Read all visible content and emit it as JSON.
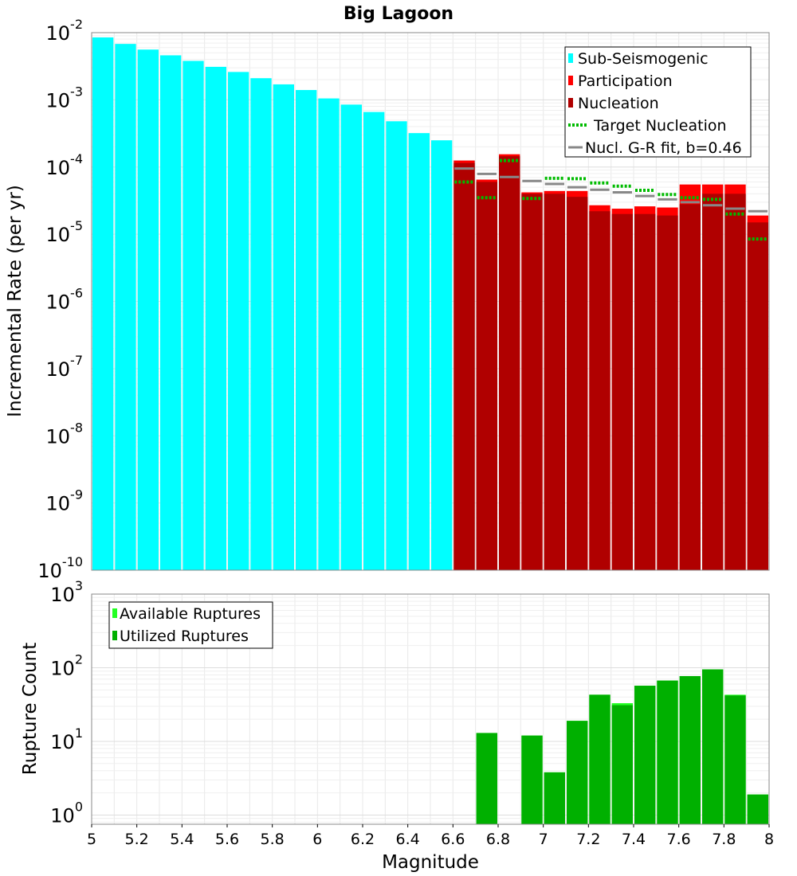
{
  "chart_data": [
    {
      "type": "bar",
      "title": "Big Lagoon",
      "xlabel": "",
      "ylabel": "Incremental Rate (per yr)",
      "yscale": "log",
      "xlim": [
        5,
        8
      ],
      "ylim": [
        1e-10,
        0.01
      ],
      "bin_width": 0.1,
      "y_ticks": [
        {
          "base": "10",
          "exp": "-10"
        },
        {
          "base": "10",
          "exp": "-9"
        },
        {
          "base": "10",
          "exp": "-8"
        },
        {
          "base": "10",
          "exp": "-7"
        },
        {
          "base": "10",
          "exp": "-6"
        },
        {
          "base": "10",
          "exp": "-5"
        },
        {
          "base": "10",
          "exp": "-4"
        },
        {
          "base": "10",
          "exp": "-3"
        },
        {
          "base": "10",
          "exp": "-2"
        }
      ],
      "legend": [
        {
          "label": "Sub-Seismogenic",
          "color": "#00ffff",
          "kind": "bar"
        },
        {
          "label": "Participation",
          "color": "#ff0000",
          "kind": "bar"
        },
        {
          "label": "Nucleation",
          "color": "#b00000",
          "kind": "bar"
        },
        {
          "label": "Target Nucleation",
          "color": "#00bb00",
          "kind": "dotted"
        },
        {
          "label": "Nucl. G-R fit, b=0.46",
          "color": "#888888",
          "kind": "line"
        }
      ],
      "series": [
        {
          "name": "Sub-Seismogenic",
          "color": "#00ffff",
          "x": [
            5.05,
            5.15,
            5.25,
            5.35,
            5.45,
            5.55,
            5.65,
            5.75,
            5.85,
            5.95,
            6.05,
            6.15,
            6.25,
            6.35,
            6.45,
            6.55,
            6.65,
            6.75
          ],
          "values": [
            0.0085,
            0.0068,
            0.0056,
            0.0046,
            0.0038,
            0.0031,
            0.0026,
            0.0021,
            0.0017,
            0.0014,
            0.00105,
            0.00085,
            0.00066,
            0.00048,
            0.00032,
            0.00025,
            0.000125,
            6.5e-05
          ]
        },
        {
          "name": "Participation",
          "color": "#ff0000",
          "x": [
            6.65,
            6.75,
            6.85,
            6.95,
            7.05,
            7.15,
            7.25,
            7.35,
            7.45,
            7.55,
            7.65,
            7.75,
            7.85,
            7.95
          ],
          "values": [
            0.000125,
            6.5e-05,
            0.000155,
            4.2e-05,
            4.4e-05,
            4.4e-05,
            2.7e-05,
            2.4e-05,
            2.6e-05,
            2.5e-05,
            5.5e-05,
            5.5e-05,
            5.5e-05,
            1.9e-05
          ]
        },
        {
          "name": "Nucleation",
          "color": "#b00000",
          "x": [
            6.65,
            6.75,
            6.85,
            6.95,
            7.05,
            7.15,
            7.25,
            7.35,
            7.45,
            7.55,
            7.65,
            7.75,
            7.85,
            7.95
          ],
          "values": [
            0.000115,
            6e-05,
            0.000145,
            4e-05,
            4e-05,
            3.6e-05,
            2.2e-05,
            2e-05,
            2e-05,
            1.9e-05,
            2.8e-05,
            4e-05,
            4e-05,
            1.5e-05
          ]
        },
        {
          "name": "Target Nucleation",
          "color": "#00bb00",
          "x": [
            6.65,
            6.75,
            6.85,
            6.95,
            7.05,
            7.15,
            7.25,
            7.35,
            7.45,
            7.55,
            7.65,
            7.75,
            7.85,
            7.95
          ],
          "values": [
            6e-05,
            3.5e-05,
            0.000125,
            3.4e-05,
            6.8e-05,
            6.7e-05,
            5.8e-05,
            5.2e-05,
            4.5e-05,
            3.9e-05,
            3.5e-05,
            3.3e-05,
            2e-05,
            8.5e-06
          ]
        },
        {
          "name": "Nucl. G-R fit, b=0.46",
          "color": "#888888",
          "x": [
            6.65,
            6.75,
            6.85,
            6.95,
            7.05,
            7.15,
            7.25,
            7.35,
            7.45,
            7.55,
            7.65,
            7.75,
            7.85,
            7.95
          ],
          "values": [
            9.5e-05,
            7.9e-05,
            7.1e-05,
            6.2e-05,
            5.6e-05,
            5e-05,
            4.6e-05,
            4.2e-05,
            3.7e-05,
            3.3e-05,
            3e-05,
            2.7e-05,
            2.4e-05,
            2.2e-05
          ]
        }
      ]
    },
    {
      "type": "bar",
      "title": "",
      "xlabel": "Magnitude",
      "ylabel": "Rupture Count",
      "yscale": "log",
      "xlim": [
        5,
        8
      ],
      "ylim": [
        0.75,
        1000
      ],
      "bin_width": 0.1,
      "x_ticks": [
        "5",
        "5.2",
        "5.4",
        "5.6",
        "5.8",
        "6",
        "6.2",
        "6.4",
        "6.6",
        "6.8",
        "7",
        "7.2",
        "7.4",
        "7.6",
        "7.8",
        "8"
      ],
      "x_tick_values": [
        5,
        5.2,
        5.4,
        5.6,
        5.8,
        6,
        6.2,
        6.4,
        6.6,
        6.8,
        7,
        7.2,
        7.4,
        7.6,
        7.8,
        8
      ],
      "y_ticks": [
        {
          "base": "10",
          "exp": "0"
        },
        {
          "base": "10",
          "exp": "1"
        },
        {
          "base": "10",
          "exp": "2"
        },
        {
          "base": "10",
          "exp": "3"
        }
      ],
      "legend": [
        {
          "label": "Available Ruptures",
          "color": "#22ff22",
          "kind": "bar"
        },
        {
          "label": "Utilized Ruptures",
          "color": "#00b000",
          "kind": "bar"
        }
      ],
      "series": [
        {
          "name": "Available Ruptures",
          "color": "#22ff22",
          "x": [
            6.75,
            6.95,
            7.05,
            7.15,
            7.25,
            7.35,
            7.45,
            7.55,
            7.65,
            7.75,
            7.85,
            7.95
          ],
          "values": [
            13,
            12,
            3.8,
            19,
            43,
            33,
            57,
            67,
            77,
            95,
            43,
            1.9
          ]
        },
        {
          "name": "Utilized Ruptures",
          "color": "#00b000",
          "x": [
            6.75,
            6.95,
            7.05,
            7.15,
            7.25,
            7.35,
            7.45,
            7.55,
            7.65,
            7.75,
            7.85,
            7.95
          ],
          "values": [
            13,
            12,
            3.8,
            19,
            43,
            31,
            57,
            67,
            77,
            95,
            42,
            1.9
          ]
        }
      ]
    }
  ]
}
